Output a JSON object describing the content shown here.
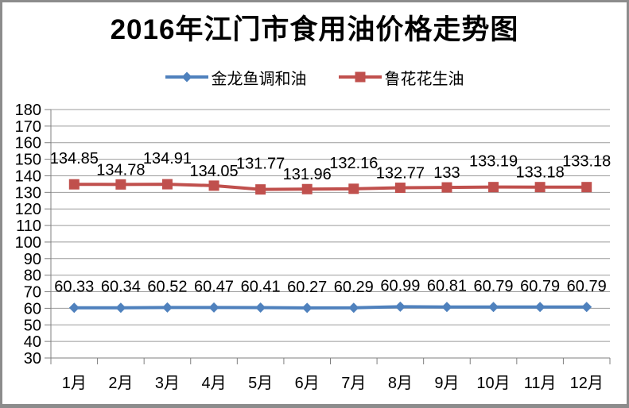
{
  "chart_data": {
    "type": "line",
    "title": "2016年江门市食用油价格走势图",
    "categories": [
      "1月",
      "2月",
      "3月",
      "4月",
      "5月",
      "6月",
      "7月",
      "8月",
      "9月",
      "10月",
      "11月",
      "12月"
    ],
    "series": [
      {
        "name": "金龙鱼调和油",
        "color": "#4F81BD",
        "marker": "diamond",
        "values": [
          60.33,
          60.34,
          60.52,
          60.47,
          60.41,
          60.27,
          60.29,
          60.99,
          60.81,
          60.79,
          60.79,
          60.79
        ],
        "labels": [
          "60.33",
          "60.34",
          "60.52",
          "60.47",
          "60.41",
          "60.27",
          "60.29",
          "60.99",
          "60.81",
          "60.79",
          "60.79",
          "60.79"
        ],
        "label_rows": null
      },
      {
        "name": "鲁花花生油",
        "color": "#C0504D",
        "marker": "square",
        "values": [
          134.85,
          134.78,
          134.91,
          134.05,
          131.77,
          131.96,
          132.16,
          132.77,
          133,
          133.19,
          133.18,
          133.18
        ],
        "labels": [
          "134.85",
          "134.78",
          "134.91",
          "134.05",
          "131.77",
          "131.96",
          "132.16",
          "132.77",
          "133",
          "133.19",
          "133.18",
          "133.18"
        ],
        "label_rows": [
          "high",
          "low",
          "high",
          "low",
          "high",
          "low",
          "high",
          "low",
          "low",
          "high",
          "low",
          "high"
        ]
      }
    ],
    "ylim": [
      30,
      180
    ],
    "ytick_step": 10,
    "yticks": [
      180,
      170,
      160,
      150,
      140,
      130,
      120,
      110,
      100,
      90,
      80,
      70,
      60,
      50,
      40,
      30
    ],
    "grid": true,
    "legend_position": "top",
    "axis_color": "#7F7F7F",
    "grid_color": "#9B9B9B",
    "text_color": "#000000"
  }
}
